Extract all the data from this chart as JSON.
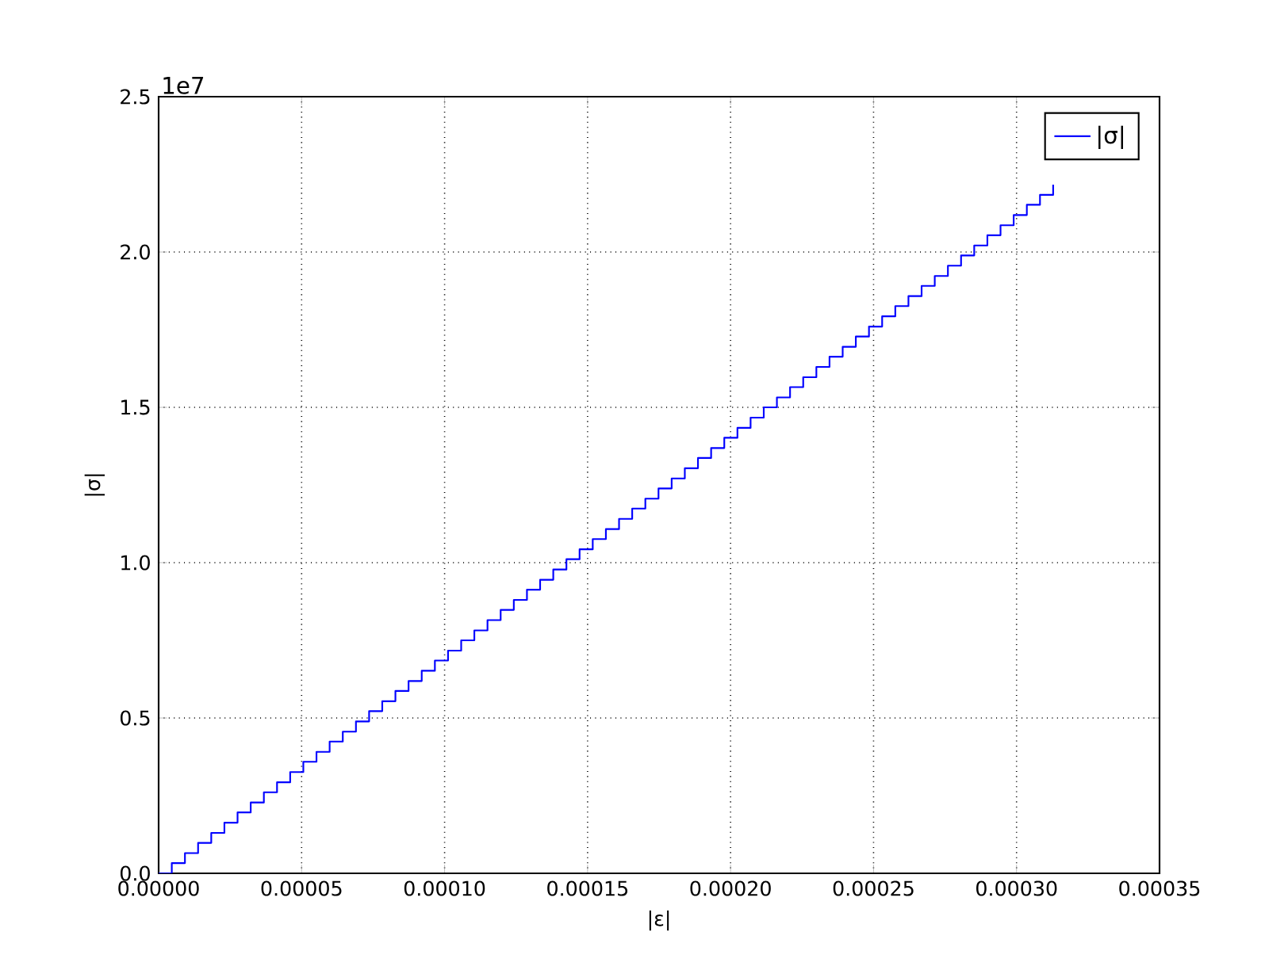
{
  "chart_data": {
    "type": "step",
    "xlabel": "|ε|",
    "ylabel": "|σ|",
    "annotations": [
      "1e7"
    ],
    "xlim": [
      0,
      0.00035
    ],
    "ylim": [
      0,
      2.5
    ],
    "xticks": [
      {
        "value": 0,
        "label": "0.00000"
      },
      {
        "value": 5e-05,
        "label": "0.00005"
      },
      {
        "value": 0.0001,
        "label": "0.00010"
      },
      {
        "value": 0.00015,
        "label": "0.00015"
      },
      {
        "value": 0.0002,
        "label": "0.00020"
      },
      {
        "value": 0.00025,
        "label": "0.00025"
      },
      {
        "value": 0.0003,
        "label": "0.00030"
      },
      {
        "value": 0.00035,
        "label": "0.00035"
      }
    ],
    "yticks": [
      {
        "value": 0,
        "label": "0.0"
      },
      0.5,
      {
        "value": 1,
        "label": "1.0"
      },
      1.5,
      {
        "value": 2,
        "label": "2.0"
      },
      2.5
    ],
    "grid": true,
    "legend": "top right",
    "series": [
      {
        "name": "|σ|",
        "color": "#0000ff",
        "x": [
          0,
          4.6e-06,
          9.2e-06,
          1.38e-05,
          1.84e-05,
          2.3e-05,
          2.76e-05,
          3.22e-05,
          3.68e-05,
          4.14e-05,
          4.6e-05,
          5.06e-05,
          5.52e-05,
          5.98e-05,
          6.44e-05,
          6.9e-05,
          7.36e-05,
          7.82e-05,
          8.28e-05,
          8.74e-05,
          9.2e-05,
          9.66e-05,
          0.0001012,
          0.0001058,
          0.0001104,
          0.000115,
          0.0001196,
          0.0001242,
          0.0001288,
          0.0001334,
          0.000138,
          0.0001426,
          0.0001472,
          0.0001518,
          0.0001564,
          0.000161,
          0.0001656,
          0.0001702,
          0.0001748,
          0.0001794,
          0.000184,
          0.0001886,
          0.0001932,
          0.0001978,
          0.0002024,
          0.000207,
          0.0002116,
          0.0002162,
          0.0002208,
          0.0002254,
          0.00023,
          0.0002346,
          0.0002392,
          0.0002438,
          0.0002484,
          0.000253,
          0.0002576,
          0.0002622,
          0.0002668,
          0.0002714,
          0.000276,
          0.0002806,
          0.0002852,
          0.0002898,
          0.0002944,
          0.000299,
          0.0003036,
          0.0003082,
          0.0003128
        ],
        "values": [
          0,
          0.033,
          0.065,
          0.098,
          0.13,
          0.163,
          0.196,
          0.228,
          0.261,
          0.293,
          0.326,
          0.359,
          0.391,
          0.424,
          0.456,
          0.489,
          0.522,
          0.554,
          0.587,
          0.619,
          0.652,
          0.685,
          0.717,
          0.75,
          0.782,
          0.815,
          0.848,
          0.88,
          0.913,
          0.945,
          0.978,
          1.011,
          1.043,
          1.076,
          1.108,
          1.141,
          1.174,
          1.206,
          1.239,
          1.271,
          1.304,
          1.337,
          1.369,
          1.402,
          1.434,
          1.467,
          1.5,
          1.532,
          1.565,
          1.597,
          1.63,
          1.663,
          1.695,
          1.728,
          1.76,
          1.793,
          1.826,
          1.858,
          1.891,
          1.923,
          1.956,
          1.989,
          2.021,
          2.054,
          2.086,
          2.119,
          2.152,
          2.184,
          2.217
        ]
      }
    ]
  }
}
